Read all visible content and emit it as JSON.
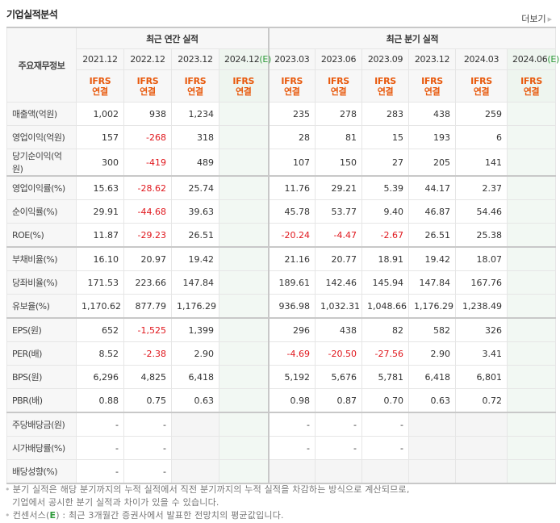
{
  "section": {
    "title": "기업실적분석",
    "more_label": "더보기"
  },
  "header": {
    "corner_label": "주요재무정보",
    "annual_group": "최근 연간 실적",
    "quarter_group": "최근 분기 실적",
    "annual_periods": [
      {
        "date": "2021.12",
        "est": ""
      },
      {
        "date": "2022.12",
        "est": ""
      },
      {
        "date": "2023.12",
        "est": ""
      },
      {
        "date": "2024.12",
        "est": "(E)"
      }
    ],
    "quarter_periods": [
      {
        "date": "2023.03",
        "est": ""
      },
      {
        "date": "2023.06",
        "est": ""
      },
      {
        "date": "2023.09",
        "est": ""
      },
      {
        "date": "2023.12",
        "est": ""
      },
      {
        "date": "2024.03",
        "est": ""
      },
      {
        "date": "2024.06",
        "est": "(E)"
      }
    ],
    "basis_line1": "IFRS",
    "basis_line2": "연결"
  },
  "rows": [
    {
      "label": "매출액(억원)",
      "annual": [
        "1,002",
        "938",
        "1,234",
        ""
      ],
      "quarter": [
        "235",
        "278",
        "283",
        "438",
        "259",
        ""
      ]
    },
    {
      "label": "영업이익(억원)",
      "annual": [
        "157",
        "-268",
        "318",
        ""
      ],
      "quarter": [
        "28",
        "81",
        "15",
        "193",
        "6",
        ""
      ]
    },
    {
      "label": "당기순이익(억원)",
      "annual": [
        "300",
        "-419",
        "489",
        ""
      ],
      "quarter": [
        "107",
        "150",
        "27",
        "205",
        "141",
        ""
      ]
    },
    {
      "label": "영업이익률(%)",
      "annual": [
        "15.63",
        "-28.62",
        "25.74",
        ""
      ],
      "quarter": [
        "11.76",
        "29.21",
        "5.39",
        "44.17",
        "2.37",
        ""
      ]
    },
    {
      "label": "순이익률(%)",
      "annual": [
        "29.91",
        "-44.68",
        "39.63",
        ""
      ],
      "quarter": [
        "45.78",
        "53.77",
        "9.40",
        "46.87",
        "54.46",
        ""
      ]
    },
    {
      "label": "ROE(%)",
      "annual": [
        "11.87",
        "-29.23",
        "26.51",
        ""
      ],
      "quarter": [
        "-20.24",
        "-4.47",
        "-2.67",
        "26.51",
        "25.38",
        ""
      ]
    },
    {
      "label": "부채비율(%)",
      "annual": [
        "16.10",
        "20.97",
        "19.42",
        ""
      ],
      "quarter": [
        "21.16",
        "20.77",
        "18.91",
        "19.42",
        "18.07",
        ""
      ]
    },
    {
      "label": "당좌비율(%)",
      "annual": [
        "171.53",
        "223.66",
        "147.84",
        ""
      ],
      "quarter": [
        "189.61",
        "142.46",
        "145.94",
        "147.84",
        "167.76",
        ""
      ]
    },
    {
      "label": "유보율(%)",
      "annual": [
        "1,170.62",
        "877.79",
        "1,176.29",
        ""
      ],
      "quarter": [
        "936.98",
        "1,032.31",
        "1,048.66",
        "1,176.29",
        "1,238.49",
        ""
      ]
    },
    {
      "label": "EPS(원)",
      "annual": [
        "652",
        "-1,525",
        "1,399",
        ""
      ],
      "quarter": [
        "296",
        "438",
        "82",
        "582",
        "326",
        ""
      ]
    },
    {
      "label": "PER(배)",
      "annual": [
        "8.52",
        "-2.38",
        "2.90",
        ""
      ],
      "quarter": [
        "-4.69",
        "-20.50",
        "-27.56",
        "2.90",
        "3.41",
        ""
      ]
    },
    {
      "label": "BPS(원)",
      "annual": [
        "6,296",
        "4,825",
        "6,418",
        ""
      ],
      "quarter": [
        "5,192",
        "5,676",
        "5,781",
        "6,418",
        "6,801",
        ""
      ]
    },
    {
      "label": "PBR(배)",
      "annual": [
        "0.88",
        "0.75",
        "0.63",
        ""
      ],
      "quarter": [
        "0.98",
        "0.87",
        "0.70",
        "0.63",
        "0.72",
        ""
      ]
    },
    {
      "label": "주당배당금(원)",
      "annual": [
        "-",
        "-",
        "",
        ""
      ],
      "quarter": [
        "-",
        "-",
        "-",
        "",
        "",
        ""
      ]
    },
    {
      "label": "시가배당률(%)",
      "annual": [
        "-",
        "-",
        "",
        ""
      ],
      "quarter": [
        "-",
        "-",
        "-",
        "",
        "",
        ""
      ]
    },
    {
      "label": "배당성향(%)",
      "annual": [
        "-",
        "-",
        "",
        ""
      ],
      "quarter": [
        "",
        "",
        "",
        "",
        "",
        ""
      ]
    }
  ],
  "notes": {
    "line1": "분기 실적은 해당 분기까지의 누적 실적에서 직전 분기까지의 누적 실적을 차감하는 방식으로 계산되므로,",
    "line2": "기업에서 공시한 분기 실적과 차이가 있을 수 있습니다.",
    "line3_prefix": "컨센서스(",
    "line3_e": "E",
    "line3_suffix": ") : 최근 3개월간 증권사에서 발표한 전망치의 평균값입니다."
  },
  "colors": {
    "negative": "#e0161c",
    "basis": "#e8590c",
    "estimate": "#2e9a3a",
    "estimate_bg": "#f2f8f3"
  }
}
